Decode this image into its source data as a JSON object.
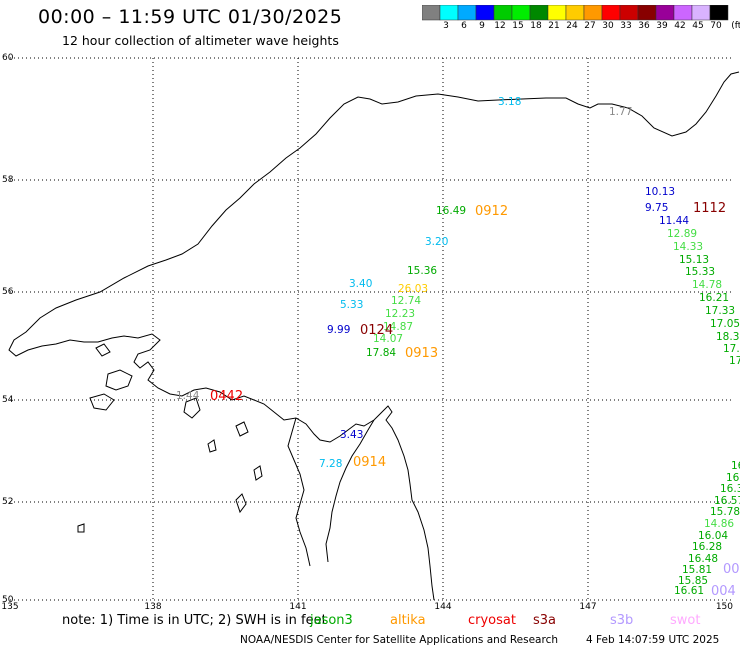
{
  "header": {
    "title": "00:00 – 11:59 UTC 01/30/2025",
    "subtitle": "12 hour collection of altimeter wave heights"
  },
  "colorbar": {
    "colors": [
      "#808080",
      "#00ffff",
      "#00aaff",
      "#0000ff",
      "#00cc00",
      "#00ee00",
      "#008800",
      "#ffff00",
      "#ffcc00",
      "#ff9900",
      "#ff0000",
      "#cc0000",
      "#880000",
      "#990099",
      "#cc66ff",
      "#d9b3ff",
      "#000000"
    ],
    "labels": [
      "3",
      "6",
      "9",
      "12",
      "15",
      "18",
      "21",
      "24",
      "27",
      "30",
      "33",
      "36",
      "39",
      "42",
      "45",
      "70"
    ],
    "unit": "(ft)"
  },
  "map": {
    "lat_labels": [
      "60",
      "58",
      "56",
      "54",
      "52",
      "50"
    ],
    "lon_labels": [
      "135",
      "138",
      "141",
      "144",
      "147",
      "150"
    ],
    "wave_heights": [
      {
        "text": "3.18",
        "color": "#00bbee"
      },
      {
        "text": "1.77",
        "color": "#888888"
      },
      {
        "text": "10.13",
        "color": "#0000cc"
      },
      {
        "text": "9.75",
        "color": "#0000cc"
      },
      {
        "text": "11.44",
        "color": "#0000cc"
      },
      {
        "text": "12.89",
        "color": "#44dd44"
      },
      {
        "text": "14.33",
        "color": "#44dd44"
      },
      {
        "text": "15.13",
        "color": "#00aa00"
      },
      {
        "text": "15.33",
        "color": "#00aa00"
      },
      {
        "text": "14.78",
        "color": "#44dd44"
      },
      {
        "text": "16.21",
        "color": "#00aa00"
      },
      {
        "text": "17.33",
        "color": "#00aa00"
      },
      {
        "text": "17.05",
        "color": "#00aa00"
      },
      {
        "text": "18.3",
        "color": "#00aa00"
      },
      {
        "text": "17.",
        "color": "#00aa00"
      },
      {
        "text": "17",
        "color": "#00aa00"
      },
      {
        "text": "16.49",
        "color": "#00aa00"
      },
      {
        "text": "3.20",
        "color": "#00bbee"
      },
      {
        "text": "15.36",
        "color": "#00aa00"
      },
      {
        "text": "3.40",
        "color": "#00bbee"
      },
      {
        "text": "26.03",
        "color": "#ffcc00"
      },
      {
        "text": "5.33",
        "color": "#00bbee"
      },
      {
        "text": "12.74",
        "color": "#44dd44"
      },
      {
        "text": "12.23",
        "color": "#44dd44"
      },
      {
        "text": "9.99",
        "color": "#0000cc"
      },
      {
        "text": "14.87",
        "color": "#44dd44"
      },
      {
        "text": "14.07",
        "color": "#44dd44"
      },
      {
        "text": "17.84",
        "color": "#00aa00"
      },
      {
        "text": "1.44",
        "color": "#888888"
      },
      {
        "text": "3.43",
        "color": "#0000cc"
      },
      {
        "text": "7.28",
        "color": "#00bbee"
      },
      {
        "text": "16",
        "color": "#00aa00"
      },
      {
        "text": "16.3",
        "color": "#00aa00"
      },
      {
        "text": "16.3",
        "color": "#00aa00"
      },
      {
        "text": "16.57",
        "color": "#00aa00"
      },
      {
        "text": "15.78",
        "color": "#00aa00"
      },
      {
        "text": "14.86",
        "color": "#44dd44"
      },
      {
        "text": "16.04",
        "color": "#00aa00"
      },
      {
        "text": "16.28",
        "color": "#00aa00"
      },
      {
        "text": "16.48",
        "color": "#00aa00"
      },
      {
        "text": "15.81",
        "color": "#00aa00"
      },
      {
        "text": "15.85",
        "color": "#00aa00"
      },
      {
        "text": "16.61",
        "color": "#00aa00"
      }
    ],
    "pass_times": [
      {
        "text": "0912",
        "color": "#ff9900"
      },
      {
        "text": "1112",
        "color": "#880000"
      },
      {
        "text": "0124",
        "color": "#880000"
      },
      {
        "text": "0913",
        "color": "#ff9900"
      },
      {
        "text": "0442",
        "color": "#ee0000"
      },
      {
        "text": "0914",
        "color": "#ff9900"
      },
      {
        "text": "00",
        "color": "#b399ff"
      },
      {
        "text": "004",
        "color": "#b399ff"
      }
    ]
  },
  "footer": {
    "note": "note:  1) Time is in UTC;  2) SWH is in feet",
    "satellites": [
      {
        "name": "jason3",
        "color": "#00aa00"
      },
      {
        "name": "altika",
        "color": "#ff9900"
      },
      {
        "name": "cryosat",
        "color": "#ee0000"
      },
      {
        "name": "s3a",
        "color": "#880000"
      },
      {
        "name": "s3b",
        "color": "#b399ff"
      },
      {
        "name": "swot",
        "color": "#ffaaff"
      }
    ],
    "credit": "NOAA/NESDIS Center for Satellite Applications and Research",
    "timestamp": "4 Feb 14:07:59 UTC 2025"
  }
}
